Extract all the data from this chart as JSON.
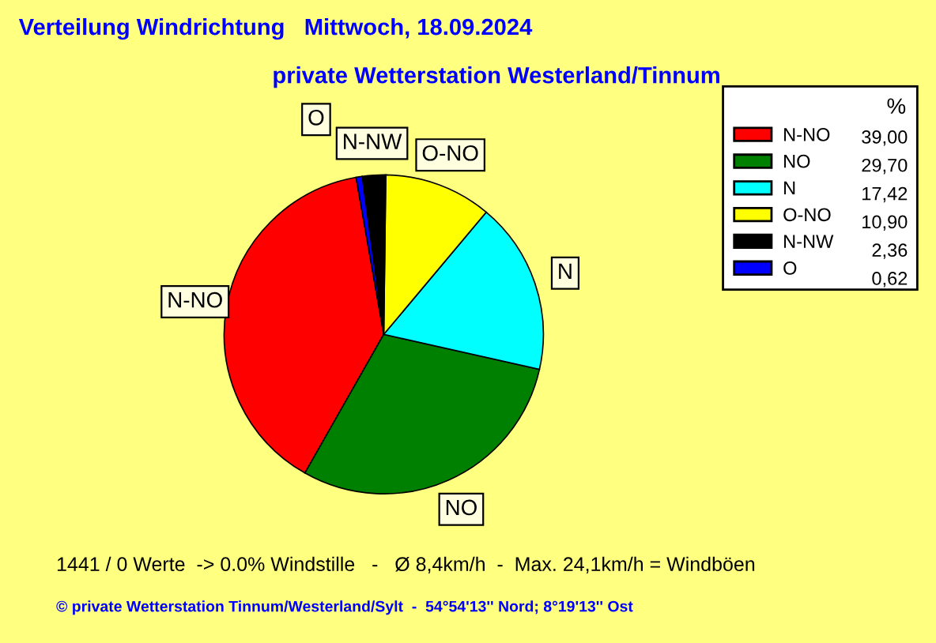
{
  "chart_data": {
    "type": "pie",
    "title": "Verteilung Windrichtung   Mittwoch, 18.09.2024",
    "subtitle": "private Wetterstation Westerland/Tinnum",
    "legend_title": "%",
    "legend": "top right",
    "categories": [
      "N-NO",
      "NO",
      "N",
      "O-NO",
      "N-NW",
      "O"
    ],
    "values": [
      39.0,
      29.7,
      17.42,
      10.9,
      2.36,
      0.62
    ],
    "value_labels": [
      "39,00",
      "29,70",
      "17,42",
      "10,90",
      "2,36",
      "0,62"
    ],
    "colors": [
      "#ff0000",
      "#008000",
      "#00ffff",
      "#ffff00",
      "#000000",
      "#0000ff"
    ],
    "annotations": [
      "1441 / 0 Werte  -> 0.0% Windstille   -   Ø 8,4km/h  -  Max. 24,1km/h = Windböen",
      "© private Wetterstation Tinnum/Westerland/Sylt  -  54°54'13'' Nord; 8°19'13'' Ost"
    ]
  }
}
